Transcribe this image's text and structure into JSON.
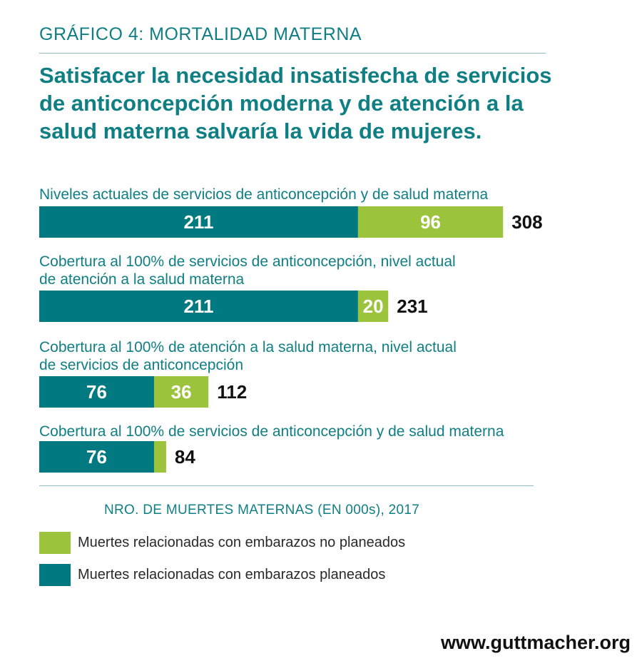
{
  "header": {
    "kicker": "GRÁFICO 4: MORTALIDAD MATERNA"
  },
  "footer": {
    "url": "www.guttmacher.org"
  },
  "colors": {
    "teal": "#007a80",
    "green": "#9bc33c",
    "text": "#0f7f84"
  },
  "chart_data": {
    "type": "bar",
    "orientation": "horizontal",
    "stacked": true,
    "title": "Satisfacer la necesidad insatisfecha de servicios de anticoncepción moderna y de atención a la salud materna salvaría la vida de mujeres.",
    "xlabel": "NRO. DE MUERTES MATERNAS (EN 000s), 2017",
    "categories": [
      "Niveles actuales de servicios de anticoncepción y de salud materna",
      "Cobertura al 100% de servicios de anticoncepción, nivel actual\nde atención a la salud materna",
      "Cobertura al 100% de atención a la salud materna, nivel actual\nde servicios de anticoncepción",
      "Cobertura al 100% de servicios de anticoncepción y de salud materna"
    ],
    "series": [
      {
        "name": "Muertes relacionadas con embarazos planeados",
        "color": "#007a80",
        "values": [
          211,
          211,
          76,
          76
        ]
      },
      {
        "name": "Muertes relacionadas con embarazos no planeados",
        "color": "#9bc33c",
        "values": [
          96,
          20,
          36,
          8
        ]
      }
    ],
    "segment_labels": [
      [
        "211",
        "96"
      ],
      [
        "211",
        "20"
      ],
      [
        "76",
        "36"
      ],
      [
        "76",
        ""
      ]
    ],
    "totals": [
      "308",
      "231",
      "112",
      "84"
    ],
    "legend": [
      {
        "label": "Muertes relacionadas con embarazos no planeados",
        "color": "#9bc33c"
      },
      {
        "label": "Muertes relacionadas con embarazos planeados",
        "color": "#007a80"
      }
    ],
    "legend_position": "bottom-left",
    "grid": false
  }
}
